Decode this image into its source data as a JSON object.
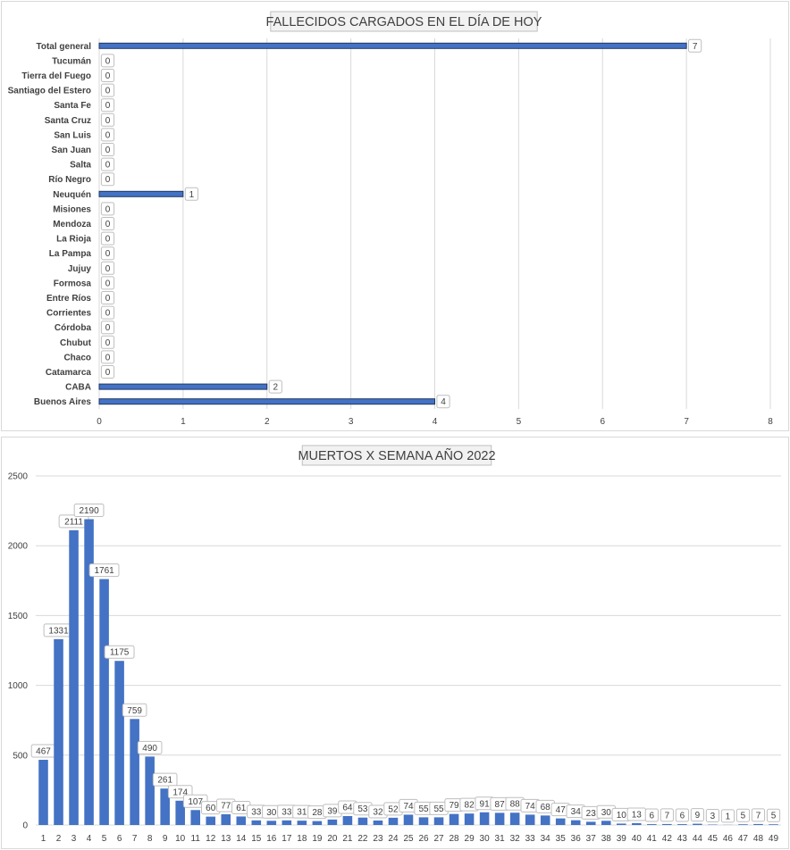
{
  "colors": {
    "bar_fill": "#4472c4",
    "bar_border": "#1f3864",
    "grid": "#d9d9d9",
    "text": "#404040"
  },
  "chart_data": [
    {
      "type": "bar",
      "orientation": "horizontal",
      "title": "FALLECIDOS CARGADOS EN EL DÍA DE HOY",
      "categories": [
        "Total general",
        "Tucumán",
        "Tierra del Fuego",
        "Santiago del Estero",
        "Santa Fe",
        "Santa Cruz",
        "San Luis",
        "San Juan",
        "Salta",
        "Río Negro",
        "Neuquén",
        "Misiones",
        "Mendoza",
        "La Rioja",
        "La Pampa",
        "Jujuy",
        "Formosa",
        "Entre Ríos",
        "Corrientes",
        "Córdoba",
        "Chubut",
        "Chaco",
        "Catamarca",
        "CABA",
        "Buenos Aires"
      ],
      "values": [
        7,
        0,
        0,
        0,
        0,
        0,
        0,
        0,
        0,
        0,
        1,
        0,
        0,
        0,
        0,
        0,
        0,
        0,
        0,
        0,
        0,
        0,
        0,
        2,
        4
      ],
      "xlim": [
        0,
        8
      ],
      "xticks": [
        "0",
        "1",
        "2",
        "3",
        "4",
        "5",
        "6",
        "7",
        "8"
      ],
      "grid": true,
      "data_labels": true
    },
    {
      "type": "bar",
      "orientation": "vertical",
      "title": "MUERTOS X SEMANA AÑO 2022",
      "categories": [
        "1",
        "2",
        "3",
        "4",
        "5",
        "6",
        "7",
        "8",
        "9",
        "10",
        "11",
        "12",
        "13",
        "14",
        "15",
        "16",
        "17",
        "18",
        "19",
        "20",
        "21",
        "22",
        "23",
        "24",
        "25",
        "26",
        "27",
        "28",
        "29",
        "30",
        "31",
        "32",
        "33",
        "34",
        "35",
        "36",
        "37",
        "38",
        "39",
        "40",
        "41",
        "42",
        "43",
        "44",
        "45",
        "46",
        "47",
        "48",
        "49"
      ],
      "values": [
        467,
        1331,
        2111,
        2190,
        1761,
        1175,
        759,
        490,
        261,
        174,
        107,
        60,
        77,
        61,
        33,
        30,
        33,
        31,
        28,
        39,
        64,
        53,
        32,
        52,
        74,
        55,
        55,
        79,
        82,
        91,
        87,
        88,
        74,
        68,
        47,
        34,
        23,
        30,
        10,
        13,
        6,
        7,
        6,
        9,
        3,
        1,
        5,
        7,
        5
      ],
      "ylim": [
        0,
        2500
      ],
      "yticks": [
        "0",
        "500",
        "1000",
        "1500",
        "2000",
        "2500"
      ],
      "grid": true,
      "data_labels": true
    }
  ]
}
